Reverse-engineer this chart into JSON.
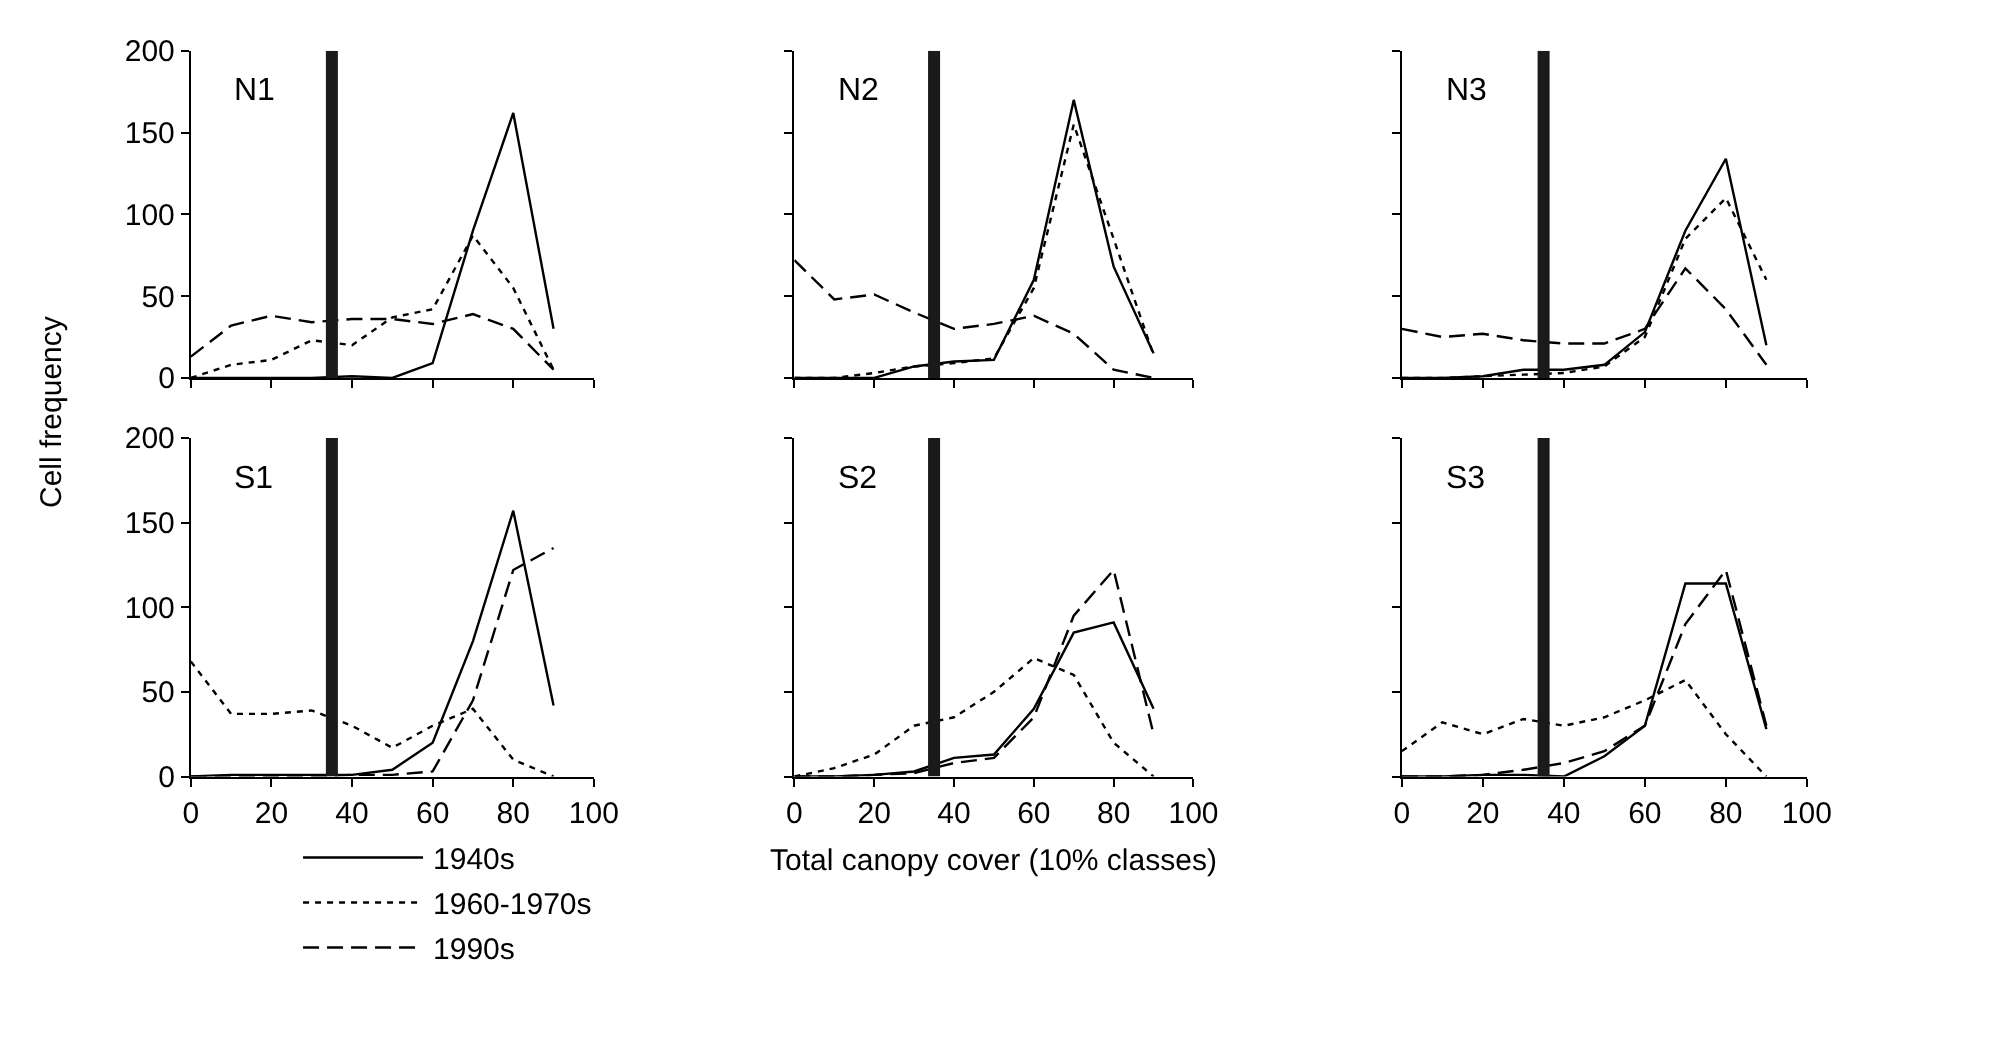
{
  "chart_data": [
    {
      "type": "line",
      "title": "N1",
      "ylabel": "Cell frequency",
      "legend": "bottom",
      "x": [
        0,
        10,
        20,
        30,
        40,
        50,
        60,
        70,
        80,
        90
      ],
      "xlim": [
        0,
        100
      ],
      "xticks": [
        0,
        20,
        40,
        60,
        80,
        100
      ],
      "ylim": [
        0,
        200
      ],
      "yticks": [
        0,
        50,
        100,
        150,
        200
      ],
      "tick_labels": "y",
      "ref_lines": [
        {
          "axis": "x",
          "value": 35,
          "color": "#1a1a1a"
        }
      ],
      "series": [
        {
          "name": "1940s",
          "color": "#000000",
          "line_style": "solid",
          "values": [
            0,
            0,
            0,
            0,
            1,
            0,
            9,
            90,
            162,
            30
          ]
        },
        {
          "name": "1960-1970s",
          "color": "#000000",
          "line_style": "dotted",
          "values": [
            0,
            8,
            11,
            23,
            20,
            37,
            42,
            87,
            55,
            5
          ]
        },
        {
          "name": "1990s",
          "color": "#000000",
          "line_style": "dashed",
          "values": [
            13,
            32,
            38,
            34,
            36,
            36,
            33,
            39,
            30,
            5
          ]
        }
      ]
    },
    {
      "type": "line",
      "title": "N2",
      "x": [
        0,
        10,
        20,
        30,
        40,
        50,
        60,
        70,
        80,
        90
      ],
      "xlim": [
        0,
        100
      ],
      "xticks": [
        0,
        20,
        40,
        60,
        80,
        100
      ],
      "ylim": [
        0,
        200
      ],
      "yticks": [
        0,
        50,
        100,
        150,
        200
      ],
      "tick_labels": false,
      "ref_lines": [
        {
          "axis": "x",
          "value": 35,
          "color": "#1a1a1a"
        }
      ],
      "series": [
        {
          "color": "#000000",
          "line_style": "solid",
          "values": [
            0,
            0,
            0,
            7,
            10,
            11,
            60,
            170,
            68,
            15
          ]
        },
        {
          "color": "#000000",
          "line_style": "dotted",
          "values": [
            0,
            0,
            3,
            7,
            9,
            12,
            55,
            155,
            85,
            14
          ]
        },
        {
          "color": "#000000",
          "line_style": "dashed",
          "values": [
            72,
            48,
            51,
            40,
            30,
            33,
            38,
            27,
            5,
            0
          ]
        }
      ]
    },
    {
      "type": "line",
      "title": "N3",
      "x": [
        0,
        10,
        20,
        30,
        40,
        50,
        60,
        70,
        80,
        90
      ],
      "xlim": [
        0,
        100
      ],
      "xticks": [
        0,
        20,
        40,
        60,
        80,
        100
      ],
      "ylim": [
        0,
        200
      ],
      "yticks": [
        0,
        50,
        100,
        150,
        200
      ],
      "tick_labels": false,
      "ref_lines": [
        {
          "axis": "x",
          "value": 35,
          "color": "#1a1a1a"
        }
      ],
      "series": [
        {
          "color": "#000000",
          "line_style": "solid",
          "values": [
            0,
            0,
            1,
            5,
            5,
            8,
            28,
            90,
            134,
            20
          ]
        },
        {
          "color": "#000000",
          "line_style": "dotted",
          "values": [
            0,
            0,
            1,
            2,
            3,
            7,
            25,
            85,
            110,
            60
          ]
        },
        {
          "color": "#000000",
          "line_style": "dashed",
          "values": [
            30,
            25,
            27,
            23,
            21,
            21,
            30,
            67,
            42,
            8
          ]
        }
      ]
    },
    {
      "type": "line",
      "title": "S1",
      "x": [
        0,
        10,
        20,
        30,
        40,
        50,
        60,
        70,
        80,
        90
      ],
      "xlim": [
        0,
        100
      ],
      "xticks": [
        0,
        20,
        40,
        60,
        80,
        100
      ],
      "ylim": [
        0,
        200
      ],
      "yticks": [
        0,
        50,
        100,
        150,
        200
      ],
      "ref_lines": [
        {
          "axis": "x",
          "value": 35,
          "color": "#1a1a1a"
        }
      ],
      "series": [
        {
          "color": "#000000",
          "line_style": "solid",
          "values": [
            0,
            1,
            1,
            1,
            1,
            4,
            20,
            80,
            157,
            42
          ]
        },
        {
          "color": "#000000",
          "line_style": "dotted",
          "values": [
            68,
            37,
            37,
            39,
            30,
            17,
            30,
            40,
            10,
            0
          ]
        },
        {
          "color": "#000000",
          "line_style": "dashed",
          "values": [
            0,
            0,
            0,
            0,
            1,
            1,
            3,
            45,
            122,
            135
          ]
        }
      ]
    },
    {
      "type": "line",
      "title": "S2",
      "xlabel": "Total canopy cover (10% classes)",
      "x": [
        0,
        10,
        20,
        30,
        40,
        50,
        60,
        70,
        80,
        90
      ],
      "xlim": [
        0,
        100
      ],
      "xticks": [
        0,
        20,
        40,
        60,
        80,
        100
      ],
      "ylim": [
        0,
        200
      ],
      "yticks": [
        0,
        50,
        100,
        150,
        200
      ],
      "tick_labels": "x",
      "ref_lines": [
        {
          "axis": "x",
          "value": 35,
          "color": "#1a1a1a"
        }
      ],
      "series": [
        {
          "color": "#000000",
          "line_style": "solid",
          "values": [
            0,
            0,
            1,
            3,
            11,
            13,
            40,
            85,
            91,
            40
          ]
        },
        {
          "color": "#000000",
          "line_style": "dotted",
          "values": [
            0,
            5,
            13,
            30,
            35,
            50,
            70,
            60,
            20,
            0
          ]
        },
        {
          "color": "#000000",
          "line_style": "dashed",
          "values": [
            0,
            0,
            1,
            2,
            8,
            11,
            35,
            95,
            122,
            25
          ]
        }
      ]
    },
    {
      "type": "line",
      "title": "S3",
      "x": [
        0,
        10,
        20,
        30,
        40,
        50,
        60,
        70,
        80,
        90
      ],
      "xlim": [
        0,
        100
      ],
      "xticks": [
        0,
        20,
        40,
        60,
        80,
        100
      ],
      "ylim": [
        0,
        200
      ],
      "yticks": [
        0,
        50,
        100,
        150,
        200
      ],
      "tick_labels": "x",
      "ref_lines": [
        {
          "axis": "x",
          "value": 35,
          "color": "#1a1a1a"
        }
      ],
      "series": [
        {
          "color": "#000000",
          "line_style": "solid",
          "values": [
            0,
            0,
            1,
            1,
            0,
            12,
            30,
            114,
            114,
            28
          ]
        },
        {
          "color": "#000000",
          "line_style": "dotted",
          "values": [
            15,
            32,
            25,
            34,
            30,
            35,
            45,
            57,
            25,
            0
          ]
        },
        {
          "color": "#000000",
          "line_style": "dashed",
          "values": [
            0,
            0,
            1,
            4,
            8,
            15,
            30,
            90,
            122,
            30
          ]
        }
      ]
    }
  ]
}
